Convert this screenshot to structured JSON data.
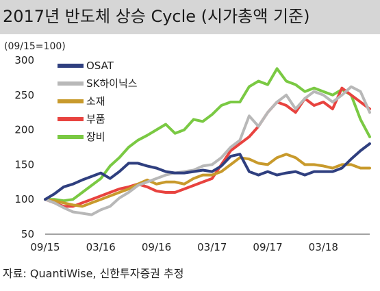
{
  "title": "2017년 반도체 상승 Cycle (시가총액 기준)",
  "source": "자료: QuantiWise, 신한투자증권 추정",
  "chart_data": {
    "type": "line",
    "title": "2017년 반도체 상승 Cycle (시가총액 기준)",
    "unit_label": "(09/15=100)",
    "xlabel": "",
    "ylabel": "",
    "ylim": [
      50,
      300
    ],
    "yticks": [
      50,
      100,
      150,
      200,
      250,
      300
    ],
    "xlim": [
      "2015-09",
      "2018-08"
    ],
    "xticks": [
      "09/15",
      "03/16",
      "09/16",
      "03/17",
      "09/17",
      "03/18"
    ],
    "grid": false,
    "legend_position": "top-left",
    "x": [
      "2015-09",
      "2015-10",
      "2015-11",
      "2015-12",
      "2016-01",
      "2016-02",
      "2016-03",
      "2016-04",
      "2016-05",
      "2016-06",
      "2016-07",
      "2016-08",
      "2016-09",
      "2016-10",
      "2016-11",
      "2016-12",
      "2017-01",
      "2017-02",
      "2017-03",
      "2017-04",
      "2017-05",
      "2017-06",
      "2017-07",
      "2017-08",
      "2017-09",
      "2017-10",
      "2017-11",
      "2017-12",
      "2018-01",
      "2018-02",
      "2018-03",
      "2018-04",
      "2018-05",
      "2018-06",
      "2018-07",
      "2018-08"
    ],
    "series": [
      {
        "name": "OSAT",
        "color": "#2f3f7f",
        "values": [
          100,
          108,
          118,
          122,
          128,
          133,
          138,
          130,
          140,
          152,
          152,
          148,
          145,
          140,
          138,
          138,
          140,
          142,
          140,
          148,
          162,
          165,
          140,
          135,
          140,
          135,
          138,
          140,
          135,
          140,
          140,
          140,
          145,
          158,
          170,
          180
        ]
      },
      {
        "name": "SK하이닉스",
        "color": "#b8b8b8",
        "values": [
          100,
          95,
          88,
          82,
          80,
          78,
          85,
          90,
          102,
          110,
          120,
          125,
          130,
          135,
          138,
          140,
          142,
          148,
          150,
          160,
          175,
          185,
          220,
          205,
          225,
          240,
          250,
          230,
          245,
          255,
          250,
          240,
          250,
          262,
          255,
          225
        ]
      },
      {
        "name": "소재",
        "color": "#c89a2c",
        "values": [
          100,
          98,
          95,
          92,
          90,
          95,
          100,
          105,
          110,
          115,
          122,
          128,
          122,
          125,
          125,
          122,
          130,
          135,
          135,
          140,
          150,
          160,
          158,
          152,
          150,
          160,
          165,
          160,
          150,
          150,
          148,
          145,
          150,
          150,
          145,
          145
        ]
      },
      {
        "name": "부품",
        "color": "#e8433f",
        "values": [
          100,
          95,
          90,
          90,
          95,
          100,
          105,
          110,
          115,
          118,
          122,
          118,
          112,
          110,
          110,
          115,
          120,
          125,
          130,
          150,
          170,
          180,
          190,
          205,
          225,
          240,
          235,
          225,
          245,
          235,
          240,
          230,
          260,
          250,
          240,
          230
        ]
      },
      {
        "name": "장비",
        "color": "#7ac943",
        "values": [
          100,
          100,
          98,
          100,
          110,
          120,
          130,
          148,
          160,
          175,
          185,
          192,
          200,
          208,
          195,
          200,
          215,
          212,
          222,
          235,
          240,
          240,
          262,
          270,
          265,
          288,
          270,
          265,
          255,
          260,
          255,
          250,
          258,
          250,
          215,
          190
        ]
      }
    ]
  }
}
